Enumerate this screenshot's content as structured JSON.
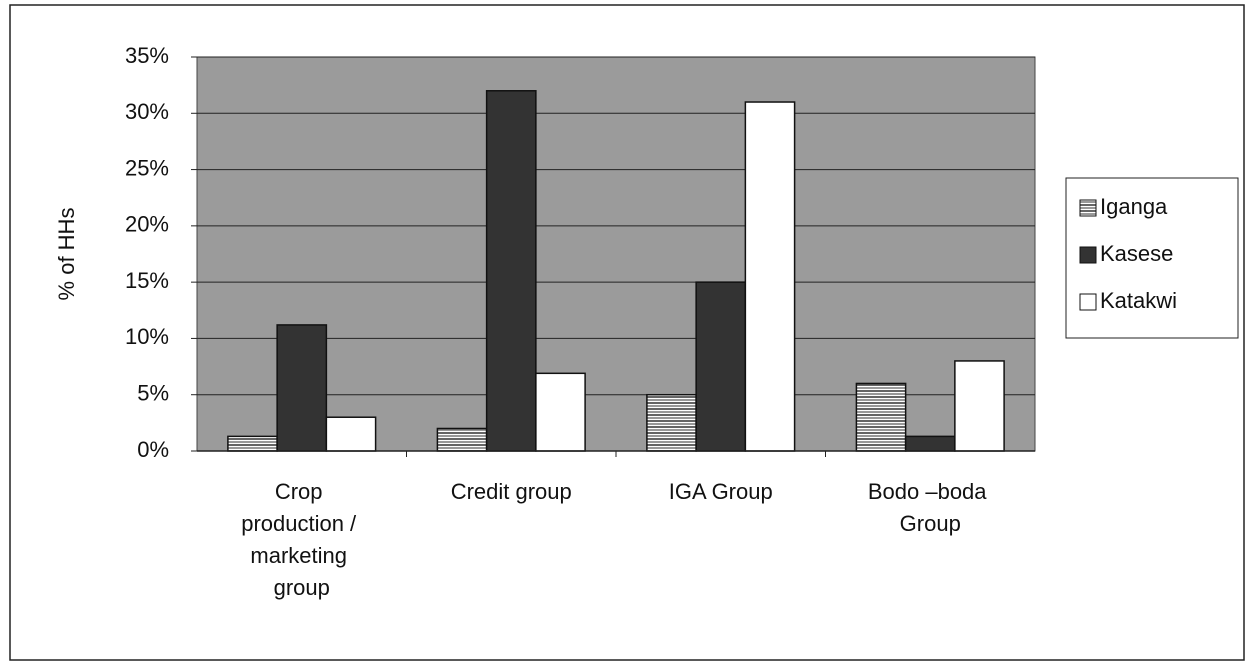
{
  "chart_data": {
    "type": "bar",
    "y_label": "% of HHs",
    "categories": [
      "Crop production / marketing group",
      "Credit group",
      "IGA Group",
      "Bodo –boda Group"
    ],
    "series": [
      {
        "name": "Iganga",
        "color": "#ffffff",
        "hatch": "horizontal",
        "values": [
          1.3,
          2,
          5,
          6
        ]
      },
      {
        "name": "Kasese",
        "color": "#333333",
        "values": [
          11.2,
          32,
          15,
          1.3
        ]
      },
      {
        "name": "Katakwi",
        "color": "#ffffff",
        "values": [
          3,
          6.9,
          31,
          8
        ]
      }
    ],
    "ylim": [
      0,
      35
    ],
    "yticks": [
      {
        "value": 0,
        "label": "0%"
      },
      {
        "value": 5,
        "label": "5%"
      },
      {
        "value": 10,
        "label": "10%"
      },
      {
        "value": 15,
        "label": "15%"
      },
      {
        "value": 20,
        "label": "20%"
      },
      {
        "value": 25,
        "label": "25%"
      },
      {
        "value": 30,
        "label": "30%"
      },
      {
        "value": 35,
        "label": "35%"
      }
    ],
    "grid": true,
    "legend": "right"
  }
}
